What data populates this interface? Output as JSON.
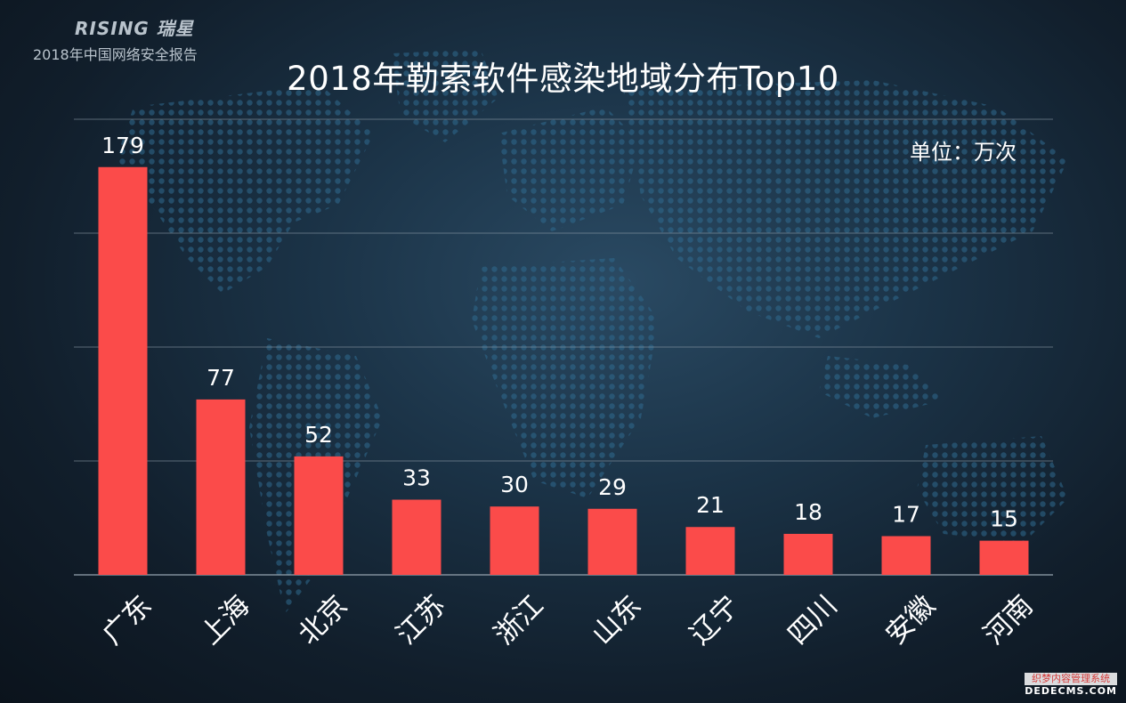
{
  "header": {
    "brand_logo": "RISING 瑞星",
    "report_name": "2018年中国网络安全报告"
  },
  "chart_data": {
    "type": "bar",
    "title": "2018年勒索软件感染地域分布Top10",
    "unit_label": "单位：万次",
    "categories": [
      "广东",
      "上海",
      "北京",
      "江苏",
      "浙江",
      "山东",
      "辽宁",
      "四川",
      "安徽",
      "河南"
    ],
    "values": [
      179,
      77,
      52,
      33,
      30,
      29,
      21,
      18,
      17,
      15
    ],
    "ylim": [
      0,
      200
    ],
    "grid": true,
    "bar_color": "#fb4b4a",
    "label_color": "#ffffff"
  },
  "watermark": {
    "cn": "织梦内容管理系统",
    "en": "DEDECMS.COM"
  },
  "colors": {
    "background": "#16283a",
    "grid": "#8c9aa6",
    "dots": "#2f6a8f"
  }
}
